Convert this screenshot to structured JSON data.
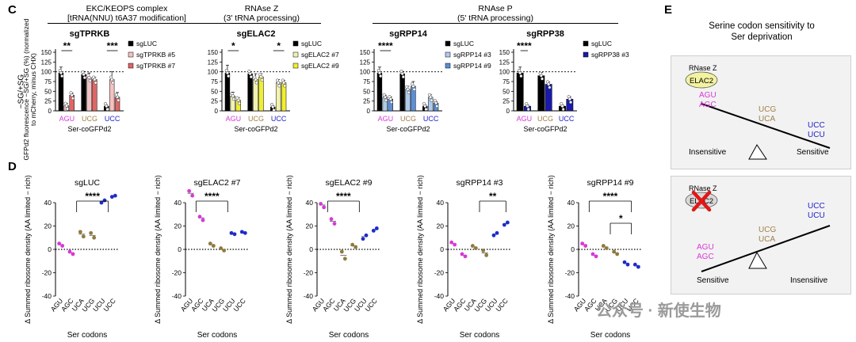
{
  "panel_labels": {
    "c": "C",
    "d": "D",
    "e": "E"
  },
  "panel_c": {
    "group_titles": [
      {
        "line1": "EKC/KEOPS complex",
        "line2": "[tRNA(NNU) t6A37 modification]"
      },
      {
        "line1": "RNAse Z",
        "line2": "(3' tRNA processing)"
      },
      {
        "line1": "RNAse P",
        "line2": "(5' tRNA processing)"
      }
    ],
    "side_label": "−SG/+SG",
    "ylabel": "GFPd2 fluorescence −SG/+SG (%) (normalized to mCherry, minus CHX)",
    "xlabel": "Ser-coGFPd2",
    "codons": [
      "AGU",
      "UCG",
      "UCC"
    ],
    "codon_colors": [
      "#d63ad6",
      "#a0814a",
      "#2222cc"
    ]
  },
  "panel_d": {
    "ylabel": "Δ Summed ribosome density (AA limited − rich)",
    "xlabel": "Ser codons",
    "xticks": [
      "AGU",
      "AGC",
      "UCA",
      "UCG",
      "UCU",
      "UCC"
    ]
  },
  "panel_e": {
    "title_line1": "Serine codon sensitivity to",
    "title_line2": "Ser deprivation",
    "rnase_label": "RNase Z",
    "elac2_label": "ELAC2",
    "top": {
      "left_codons": [
        "AGU",
        "AGC"
      ],
      "mid_codons": [
        "UCG",
        "UCA"
      ],
      "right_codons": [
        "UCC",
        "UCU"
      ],
      "left_label": "Insensitive",
      "right_label": "Sensitive"
    },
    "bottom": {
      "left_codons": [
        "AGU",
        "AGC"
      ],
      "mid_codons": [
        "UCG",
        "UCA"
      ],
      "right_codons": [
        "UCC",
        "UCU"
      ],
      "left_label": "Sensitive",
      "right_label": "Insensitive"
    }
  },
  "watermark": "公众号 · 新使生物",
  "chart_data": [
    {
      "type": "bar",
      "id": "c1",
      "title": "sgTPRKB",
      "ylim": [
        0,
        150
      ],
      "yticks": [
        0,
        25,
        50,
        75,
        100,
        125,
        150
      ],
      "categories": [
        "AGU",
        "UCG",
        "UCC"
      ],
      "reference_line": 100,
      "legend": [
        "sgLUC",
        "sgTPRKB #5",
        "sgTPRKB #7"
      ],
      "colors": [
        "#000000",
        "#f4c2c2",
        "#e06666"
      ],
      "series": [
        {
          "name": "sgLUC",
          "values": [
            97,
            93,
            12
          ]
        },
        {
          "name": "sgTPRKB #5",
          "values": [
            13,
            85,
            80
          ]
        },
        {
          "name": "sgTPRKB #7",
          "values": [
            40,
            80,
            35
          ]
        }
      ],
      "errors": [
        [
          15,
          8,
          3
        ],
        [
          6,
          12,
          20
        ],
        [
          5,
          6,
          12
        ]
      ],
      "significance": [
        {
          "label": "**",
          "category": 0
        },
        {
          "label": "***",
          "category": 2
        }
      ]
    },
    {
      "type": "bar",
      "id": "c2",
      "title": "sgELAC2",
      "ylim": [
        0,
        150
      ],
      "yticks": [
        0,
        25,
        50,
        75,
        100,
        125,
        150
      ],
      "categories": [
        "AGU",
        "UCG",
        "UCC"
      ],
      "reference_line": 100,
      "legend": [
        "sgLUC",
        "sgELAC2 #7",
        "sgELAC2 #9"
      ],
      "colors": [
        "#000000",
        "#f2f2b0",
        "#f0ee30"
      ],
      "series": [
        {
          "name": "sgLUC",
          "values": [
            97,
            95,
            10
          ]
        },
        {
          "name": "sgELAC2 #7",
          "values": [
            38,
            80,
            72
          ]
        },
        {
          "name": "sgELAC2 #9",
          "values": [
            27,
            87,
            72
          ]
        }
      ],
      "errors": [
        [
          20,
          5,
          3
        ],
        [
          10,
          15,
          8
        ],
        [
          7,
          8,
          6
        ]
      ],
      "significance": [
        {
          "label": "*",
          "category": 0
        },
        {
          "label": "*",
          "category": 2
        }
      ]
    },
    {
      "type": "bar",
      "id": "c3",
      "title": "sgRPP14",
      "ylim": [
        0,
        150
      ],
      "yticks": [
        0,
        25,
        50,
        75,
        100,
        125,
        150
      ],
      "categories": [
        "AGU",
        "UCG",
        "UCC"
      ],
      "reference_line": 100,
      "legend": [
        "sgLUC",
        "sgRPP14 #3",
        "sgRPP14 #9"
      ],
      "colors": [
        "#000000",
        "#aecbee",
        "#5b8fd6"
      ],
      "series": [
        {
          "name": "sgLUC",
          "values": [
            97,
            95,
            12
          ]
        },
        {
          "name": "sgRPP14 #3",
          "values": [
            35,
            55,
            35
          ]
        },
        {
          "name": "sgRPP14 #9",
          "values": [
            30,
            63,
            20
          ]
        }
      ],
      "errors": [
        [
          15,
          6,
          3
        ],
        [
          5,
          8,
          6
        ],
        [
          5,
          12,
          3
        ]
      ],
      "significance": [
        {
          "label": "****",
          "category": 0
        }
      ]
    },
    {
      "type": "bar",
      "id": "c4",
      "title": "sgRPP38",
      "ylim": [
        0,
        150
      ],
      "yticks": [
        0,
        25,
        50,
        75,
        100,
        125,
        150
      ],
      "categories": [
        "AGU",
        "UCG",
        "UCC"
      ],
      "reference_line": 100,
      "legend": [
        "sgLUC",
        "sgRPP38 #3"
      ],
      "colors": [
        "#000000",
        "#1a1aaa"
      ],
      "series": [
        {
          "name": "sgLUC",
          "values": [
            97,
            90,
            12
          ]
        },
        {
          "name": "sgRPP38 #3",
          "values": [
            12,
            68,
            30
          ]
        }
      ],
      "errors": [
        [
          15,
          8,
          3
        ],
        [
          3,
          6,
          6
        ]
      ],
      "significance": [
        {
          "label": "****",
          "category": 0
        }
      ]
    },
    {
      "type": "scatter",
      "id": "d1",
      "title": "sgLUC",
      "ylim": [
        -40,
        40
      ],
      "yticks": [
        -40,
        -20,
        0,
        20,
        40
      ],
      "categories": [
        "AGU",
        "AGC",
        "UCA",
        "UCG",
        "UCU",
        "UCC"
      ],
      "means": [
        4,
        -3,
        13,
        12,
        41,
        45
      ],
      "points": [
        [
          5,
          3
        ],
        [
          -2,
          -4
        ],
        [
          15,
          11
        ],
        [
          14,
          10
        ],
        [
          40,
          42
        ],
        [
          45,
          46
        ]
      ],
      "significance": [
        {
          "label": "****",
          "from": [
            0,
            3
          ],
          "to": [
            4,
            5
          ]
        }
      ]
    },
    {
      "type": "scatter",
      "id": "d2",
      "title": "sgELAC2 #7",
      "ylim": [
        -40,
        40
      ],
      "yticks": [
        -40,
        -20,
        0,
        20,
        40
      ],
      "categories": [
        "AGU",
        "AGC",
        "UCA",
        "UCG",
        "UCU",
        "UCC"
      ],
      "means": [
        48,
        27,
        4,
        0,
        13,
        14
      ],
      "points": [
        [
          50,
          46
        ],
        [
          28,
          25
        ],
        [
          5,
          3
        ],
        [
          1,
          -1
        ],
        [
          14,
          13
        ],
        [
          15,
          14
        ]
      ],
      "significance": [
        {
          "label": "****",
          "from": [
            0,
            1
          ],
          "to": [
            2,
            5
          ]
        }
      ]
    },
    {
      "type": "scatter",
      "id": "d3",
      "title": "sgELAC2 #9",
      "ylim": [
        -40,
        40
      ],
      "yticks": [
        -40,
        -20,
        0,
        20,
        40
      ],
      "categories": [
        "AGU",
        "AGC",
        "UCA",
        "UCG",
        "UCU",
        "UCC"
      ],
      "means": [
        38,
        24,
        -5,
        3,
        11,
        17
      ],
      "points": [
        [
          39,
          36
        ],
        [
          26,
          22
        ],
        [
          -2,
          -8
        ],
        [
          4,
          2
        ],
        [
          9,
          12
        ],
        [
          16,
          18
        ]
      ],
      "significance": [
        {
          "label": "****",
          "from": [
            0,
            1
          ],
          "to": [
            2,
            5
          ]
        }
      ]
    },
    {
      "type": "scatter",
      "id": "d4",
      "title": "sgRPP14 #3",
      "ylim": [
        -40,
        40
      ],
      "yticks": [
        -40,
        -20,
        0,
        20,
        40
      ],
      "categories": [
        "AGU",
        "AGC",
        "UCA",
        "UCG",
        "UCU",
        "UCC"
      ],
      "means": [
        5,
        -5,
        2,
        -3,
        13,
        22
      ],
      "points": [
        [
          6,
          4
        ],
        [
          -4,
          -6
        ],
        [
          3,
          1
        ],
        [
          -1,
          -5
        ],
        [
          12,
          14
        ],
        [
          21,
          23
        ]
      ],
      "significance": [
        {
          "label": "**",
          "from": [
            2,
            3
          ],
          "to": [
            5,
            5
          ]
        }
      ]
    },
    {
      "type": "scatter",
      "id": "d5",
      "title": "sgRPP14 #9",
      "ylim": [
        -40,
        40
      ],
      "yticks": [
        -40,
        -20,
        0,
        20,
        40
      ],
      "categories": [
        "AGU",
        "AGC",
        "UCA",
        "UCG",
        "UCU",
        "UCC"
      ],
      "means": [
        4,
        -5,
        2,
        -3,
        -12,
        -14
      ],
      "points": [
        [
          5,
          3
        ],
        [
          -4,
          -6
        ],
        [
          3,
          1
        ],
        [
          -2,
          -4
        ],
        [
          -11,
          -13
        ],
        [
          -13,
          -15
        ]
      ],
      "significance": [
        {
          "label": "****",
          "from": [
            0,
            1
          ],
          "to": [
            4,
            5
          ]
        },
        {
          "label": "*",
          "from": [
            2,
            3
          ],
          "to": [
            4,
            5
          ]
        }
      ]
    }
  ]
}
